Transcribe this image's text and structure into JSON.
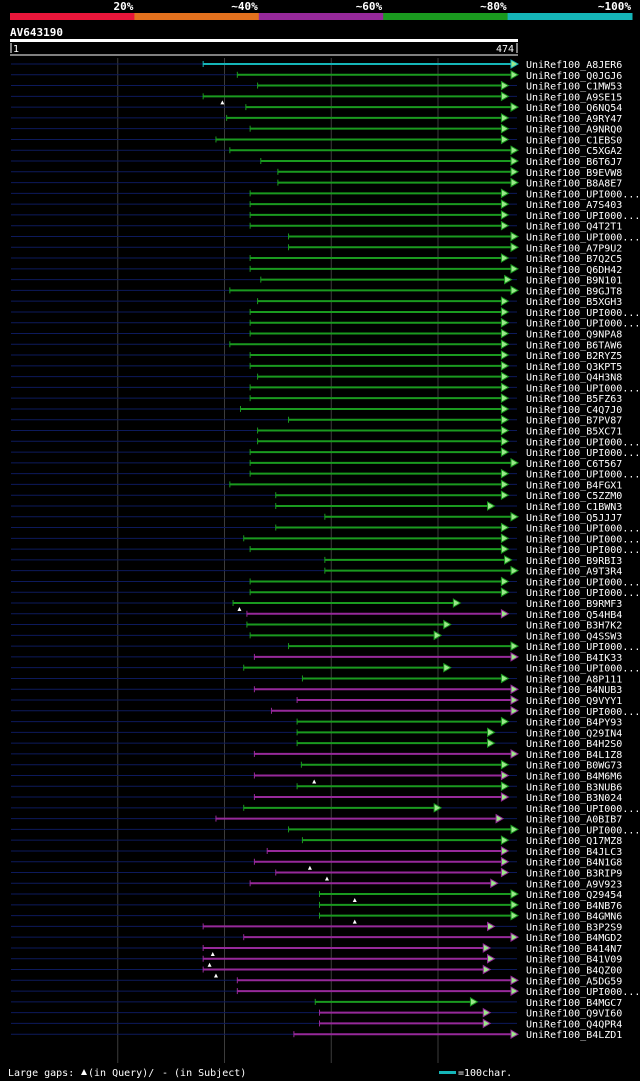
{
  "chart_data": {
    "type": "alignment-overview",
    "query_id": "AV643190",
    "query_start": "1",
    "query_end": "474",
    "query_length": 474,
    "identity_legend": [
      {
        "label": "20%",
        "color": "#e8163a"
      },
      {
        "label": "~40%",
        "color": "#e2711e"
      },
      {
        "label": "~60%",
        "color": "#96299a"
      },
      {
        "label": "~80%",
        "color": "#1a9a1f"
      },
      {
        "label": "~100%",
        "color": "#15b5b8"
      }
    ],
    "hits": [
      {
        "id": "UniRef100_A8JER6",
        "start": 180,
        "end": 474,
        "color": "#15b5b8"
      },
      {
        "id": "UniRef100_Q0JGJ6",
        "start": 212,
        "end": 474,
        "color": "#1a9a1f"
      },
      {
        "id": "UniRef100_C1MW53",
        "start": 231,
        "end": 465,
        "color": "#1a9a1f"
      },
      {
        "id": "UniRef100_A9SE15",
        "start": 180,
        "end": 465,
        "color": "#1a9a1f",
        "gap_q": 198
      },
      {
        "id": "UniRef100_Q6NQ54",
        "start": 220,
        "end": 474,
        "color": "#1a9a1f"
      },
      {
        "id": "UniRef100_A9RY47",
        "start": 202,
        "end": 465,
        "color": "#1a9a1f"
      },
      {
        "id": "UniRef100_A9NRQ0",
        "start": 224,
        "end": 465,
        "color": "#1a9a1f"
      },
      {
        "id": "UniRef100_C1EBS0",
        "start": 192,
        "end": 465,
        "color": "#1a9a1f"
      },
      {
        "id": "UniRef100_C5XGA2",
        "start": 205,
        "end": 474,
        "color": "#1a9a1f"
      },
      {
        "id": "UniRef100_B6T6J7",
        "start": 234,
        "end": 474,
        "color": "#1a9a1f"
      },
      {
        "id": "UniRef100_B9EVW8",
        "start": 250,
        "end": 474,
        "color": "#1a9a1f"
      },
      {
        "id": "UniRef100_B8A8E7",
        "start": 250,
        "end": 474,
        "color": "#1a9a1f"
      },
      {
        "id": "UniRef100_UPI000...",
        "start": 224,
        "end": 465,
        "color": "#1a9a1f"
      },
      {
        "id": "UniRef100_A7S403",
        "start": 224,
        "end": 465,
        "color": "#1a9a1f"
      },
      {
        "id": "UniRef100_UPI000...",
        "start": 224,
        "end": 465,
        "color": "#1a9a1f"
      },
      {
        "id": "UniRef100_Q4T2T1",
        "start": 224,
        "end": 465,
        "color": "#1a9a1f"
      },
      {
        "id": "UniRef100_UPI000...",
        "start": 260,
        "end": 474,
        "color": "#1a9a1f"
      },
      {
        "id": "UniRef100_A7P9U2",
        "start": 260,
        "end": 474,
        "color": "#1a9a1f"
      },
      {
        "id": "UniRef100_B7Q2C5",
        "start": 224,
        "end": 465,
        "color": "#1a9a1f"
      },
      {
        "id": "UniRef100_Q6DH42",
        "start": 224,
        "end": 474,
        "color": "#1a9a1f"
      },
      {
        "id": "UniRef100_B9N101",
        "start": 234,
        "end": 468,
        "color": "#1a9a1f"
      },
      {
        "id": "UniRef100_B9GJT8",
        "start": 205,
        "end": 474,
        "color": "#1a9a1f"
      },
      {
        "id": "UniRef100_B5XGH3",
        "start": 231,
        "end": 465,
        "color": "#1a9a1f"
      },
      {
        "id": "UniRef100_UPI000...",
        "start": 224,
        "end": 465,
        "color": "#1a9a1f"
      },
      {
        "id": "UniRef100_UPI000...",
        "start": 224,
        "end": 465,
        "color": "#1a9a1f"
      },
      {
        "id": "UniRef100_Q9NPA8",
        "start": 224,
        "end": 465,
        "color": "#1a9a1f"
      },
      {
        "id": "UniRef100_B6TAW6",
        "start": 205,
        "end": 465,
        "color": "#1a9a1f"
      },
      {
        "id": "UniRef100_B2RYZ5",
        "start": 224,
        "end": 465,
        "color": "#1a9a1f"
      },
      {
        "id": "UniRef100_Q3KPT5",
        "start": 224,
        "end": 465,
        "color": "#1a9a1f"
      },
      {
        "id": "UniRef100_Q4H3N8",
        "start": 231,
        "end": 465,
        "color": "#1a9a1f"
      },
      {
        "id": "UniRef100_UPI000...",
        "start": 224,
        "end": 465,
        "color": "#1a9a1f"
      },
      {
        "id": "UniRef100_B5FZ63",
        "start": 224,
        "end": 465,
        "color": "#1a9a1f"
      },
      {
        "id": "UniRef100_C4Q7J0",
        "start": 215,
        "end": 465,
        "color": "#1a9a1f"
      },
      {
        "id": "UniRef100_B7PV87",
        "start": 260,
        "end": 465,
        "color": "#1a9a1f"
      },
      {
        "id": "UniRef100_B5XC71",
        "start": 231,
        "end": 465,
        "color": "#1a9a1f"
      },
      {
        "id": "UniRef100_UPI000...",
        "start": 231,
        "end": 465,
        "color": "#1a9a1f"
      },
      {
        "id": "UniRef100_UPI000...",
        "start": 224,
        "end": 465,
        "color": "#1a9a1f"
      },
      {
        "id": "UniRef100_C6T567",
        "start": 224,
        "end": 474,
        "color": "#1a9a1f"
      },
      {
        "id": "UniRef100_UPI000...",
        "start": 224,
        "end": 465,
        "color": "#1a9a1f"
      },
      {
        "id": "UniRef100_B4FGX1",
        "start": 205,
        "end": 465,
        "color": "#1a9a1f"
      },
      {
        "id": "UniRef100_C5ZZM0",
        "start": 248,
        "end": 465,
        "color": "#1a9a1f"
      },
      {
        "id": "UniRef100_C1BWN3",
        "start": 248,
        "end": 452,
        "color": "#1a9a1f"
      },
      {
        "id": "UniRef100_Q5JJJ7",
        "start": 294,
        "end": 474,
        "color": "#1a9a1f"
      },
      {
        "id": "UniRef100_UPI000...",
        "start": 248,
        "end": 465,
        "color": "#1a9a1f"
      },
      {
        "id": "UniRef100_UPI000...",
        "start": 218,
        "end": 465,
        "color": "#1a9a1f"
      },
      {
        "id": "UniRef100_UPI000...",
        "start": 224,
        "end": 465,
        "color": "#1a9a1f"
      },
      {
        "id": "UniRef100_B9RBI3",
        "start": 294,
        "end": 468,
        "color": "#1a9a1f"
      },
      {
        "id": "UniRef100_A9T3R4",
        "start": 294,
        "end": 474,
        "color": "#1a9a1f"
      },
      {
        "id": "UniRef100_UPI000...",
        "start": 224,
        "end": 465,
        "color": "#1a9a1f"
      },
      {
        "id": "UniRef100_UPI000...",
        "start": 224,
        "end": 465,
        "color": "#1a9a1f"
      },
      {
        "id": "UniRef100_B9RMF3",
        "start": 208,
        "end": 420,
        "color": "#1a9a1f",
        "gap_q": 214
      },
      {
        "id": "UniRef100_Q54HB4",
        "start": 221,
        "end": 465,
        "color": "#96299a"
      },
      {
        "id": "UniRef100_B3H7K2",
        "start": 221,
        "end": 411,
        "color": "#1a9a1f"
      },
      {
        "id": "UniRef100_Q4SSW3",
        "start": 224,
        "end": 402,
        "color": "#1a9a1f"
      },
      {
        "id": "UniRef100_UPI000...",
        "start": 260,
        "end": 474,
        "color": "#1a9a1f"
      },
      {
        "id": "UniRef100_B4IK33",
        "start": 228,
        "end": 474,
        "color": "#96299a"
      },
      {
        "id": "UniRef100_UPI000...",
        "start": 218,
        "end": 411,
        "color": "#1a9a1f"
      },
      {
        "id": "UniRef100_A8P111",
        "start": 273,
        "end": 465,
        "color": "#1a9a1f"
      },
      {
        "id": "UniRef100_B4NUB3",
        "start": 228,
        "end": 474,
        "color": "#96299a"
      },
      {
        "id": "UniRef100_Q9VYY1",
        "start": 268,
        "end": 474,
        "color": "#96299a"
      },
      {
        "id": "UniRef100_UPI000...",
        "start": 244,
        "end": 474,
        "color": "#96299a"
      },
      {
        "id": "UniRef100_B4PY93",
        "start": 268,
        "end": 465,
        "color": "#1a9a1f"
      },
      {
        "id": "UniRef100_Q29IN4",
        "start": 268,
        "end": 452,
        "color": "#1a9a1f"
      },
      {
        "id": "UniRef100_B4H2S0",
        "start": 268,
        "end": 452,
        "color": "#1a9a1f"
      },
      {
        "id": "UniRef100_B4L1Z8",
        "start": 228,
        "end": 474,
        "color": "#96299a"
      },
      {
        "id": "UniRef100_B0WG73",
        "start": 272,
        "end": 465,
        "color": "#1a9a1f"
      },
      {
        "id": "UniRef100_B4M6M6",
        "start": 228,
        "end": 465,
        "color": "#96299a",
        "gap_q": 284
      },
      {
        "id": "UniRef100_B3NUB6",
        "start": 268,
        "end": 465,
        "color": "#1a9a1f"
      },
      {
        "id": "UniRef100_B3N024",
        "start": 228,
        "end": 465,
        "color": "#96299a"
      },
      {
        "id": "UniRef100_UPI000...",
        "start": 218,
        "end": 402,
        "color": "#1a9a1f"
      },
      {
        "id": "UniRef100_A0BIB7",
        "start": 192,
        "end": 460,
        "color": "#96299a"
      },
      {
        "id": "UniRef100_UPI000...",
        "start": 260,
        "end": 474,
        "color": "#1a9a1f"
      },
      {
        "id": "UniRef100_Q17MZ8",
        "start": 273,
        "end": 465,
        "color": "#1a9a1f"
      },
      {
        "id": "UniRef100_B4JLC3",
        "start": 240,
        "end": 465,
        "color": "#96299a"
      },
      {
        "id": "UniRef100_B4N1G8",
        "start": 228,
        "end": 465,
        "color": "#96299a",
        "gap_q": 280
      },
      {
        "id": "UniRef100_B3RIP9",
        "start": 248,
        "end": 465,
        "color": "#96299a",
        "gap_q": 296
      },
      {
        "id": "UniRef100_A9V923",
        "start": 224,
        "end": 455,
        "color": "#96299a"
      },
      {
        "id": "UniRef100_Q29454",
        "start": 289,
        "end": 474,
        "color": "#1a9a1f",
        "gap_q": 322
      },
      {
        "id": "UniRef100_B4NB76",
        "start": 289,
        "end": 474,
        "color": "#1a9a1f"
      },
      {
        "id": "UniRef100_B4GMN6",
        "start": 289,
        "end": 474,
        "color": "#1a9a1f",
        "gap_q": 322
      },
      {
        "id": "UniRef100_B3P2S9",
        "start": 180,
        "end": 452,
        "color": "#96299a"
      },
      {
        "id": "UniRef100_B4MGD2",
        "start": 218,
        "end": 474,
        "color": "#96299a"
      },
      {
        "id": "UniRef100_B414N7",
        "start": 180,
        "end": 448,
        "color": "#96299a",
        "gap_q": 189
      },
      {
        "id": "UniRef100_B41V09",
        "start": 180,
        "end": 452,
        "color": "#96299a",
        "gap_q": 186
      },
      {
        "id": "UniRef100_B4QZ00",
        "start": 180,
        "end": 448,
        "color": "#96299a",
        "gap_q": 192
      },
      {
        "id": "UniRef100_A5DG59",
        "start": 212,
        "end": 474,
        "color": "#96299a"
      },
      {
        "id": "UniRef100_UPI000...",
        "start": 212,
        "end": 474,
        "color": "#96299a"
      },
      {
        "id": "UniRef100_B4MGC7",
        "start": 285,
        "end": 436,
        "color": "#1a9a1f"
      },
      {
        "id": "UniRef100_Q9VI60",
        "start": 289,
        "end": 448,
        "color": "#96299a"
      },
      {
        "id": "UniRef100_Q4QPR4",
        "start": 289,
        "end": 448,
        "color": "#96299a"
      },
      {
        "id": "UniRef100_B4LZD1",
        "start": 265,
        "end": 474,
        "color": "#96299a"
      }
    ],
    "footer": {
      "gaps_label": "Large gaps:",
      "gaps_query": "(in Query)/",
      "gaps_subject": "- (in Subject)",
      "scale_label": "=100char."
    },
    "colors": {
      "background": "#000000",
      "track": "#0d1a5c",
      "grid": "#3c3c3c",
      "scale_key": "#15b5b8",
      "query_bar": "#ffffff",
      "gap_marker": "#ffffff"
    }
  }
}
